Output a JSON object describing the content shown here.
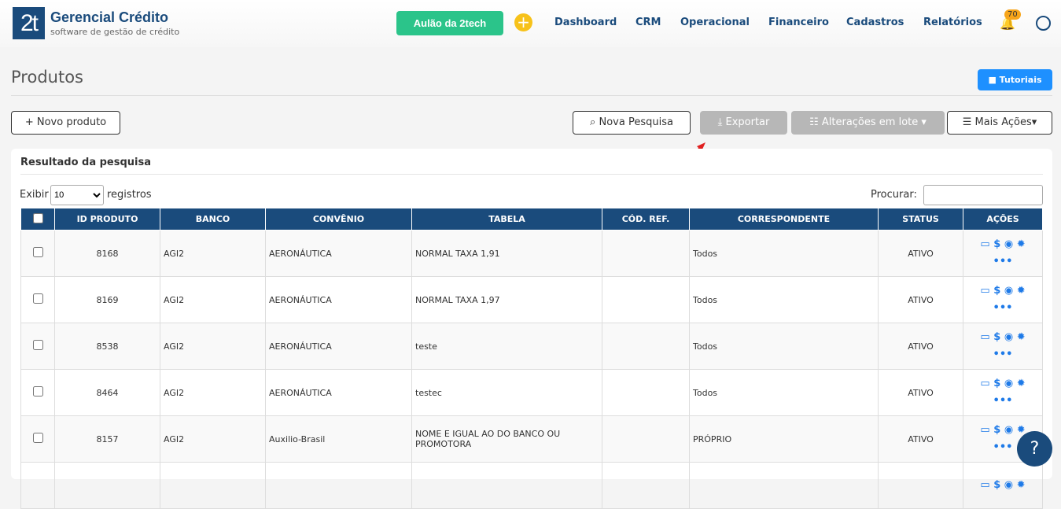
{
  "header": {
    "logo": "2t",
    "brand": "Gerencial Crédito",
    "tagline": "software de gestão de crédito",
    "aulao": "Aulão da 2tech",
    "nav": [
      "Dashboard",
      "CRM",
      "Operacional",
      "Financeiro",
      "Cadastros",
      "Relatórios"
    ],
    "notifications": "70"
  },
  "page": {
    "title": "Produtos",
    "tutoriais": "Tutoriais"
  },
  "toolbar": {
    "novo": "+ Novo produto",
    "pesquisa": "Nova Pesquisa",
    "exportar": "Exportar",
    "lote": "Alterações em lote",
    "mais": "Mais Ações"
  },
  "card": {
    "title": "Resultado da pesquisa",
    "exibir": "Exibir",
    "page_size": "10",
    "registros": "registros",
    "procurar": "Procurar:"
  },
  "table": {
    "columns": [
      "ID PRODUTO",
      "BANCO",
      "CONVÊNIO",
      "TABELA",
      "CÓD. REF.",
      "CORRESPONDENTE",
      "STATUS",
      "AÇÕES"
    ],
    "rows": [
      [
        "8168",
        "AGI2",
        "AERONÁUTICA",
        "NORMAL TAXA 1,91",
        "",
        "Todos",
        "ATIVO"
      ],
      [
        "8169",
        "AGI2",
        "AERONÁUTICA",
        "NORMAL TAXA 1,97",
        "",
        "Todos",
        "ATIVO"
      ],
      [
        "8538",
        "AGI2",
        "AERONÁUTICA",
        "teste",
        "",
        "Todos",
        "ATIVO"
      ],
      [
        "8464",
        "AGI2",
        "AERONÁUTICA",
        "testec",
        "",
        "Todos",
        "ATIVO"
      ],
      [
        "8157",
        "AGI2",
        "Auxilio-Brasil",
        "NOME E IGUAL AO DO BANCO OU PROMOTORA",
        "",
        "PRÓPRIO",
        "ATIVO"
      ]
    ]
  },
  "help": "?"
}
